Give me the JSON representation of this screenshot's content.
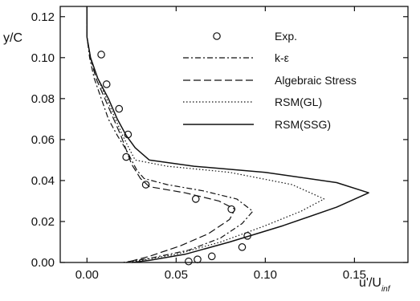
{
  "chart_data": {
    "type": "line",
    "xlabel": "u'/U",
    "xlabel_sub": "inf",
    "ylabel": "y/C",
    "xlim": [
      -0.015,
      0.18
    ],
    "ylim": [
      0.0,
      0.125
    ],
    "x_ticks": [
      0.0,
      0.05,
      0.1,
      0.15
    ],
    "x_tick_labels": [
      "0.00",
      "0.05",
      "0.10",
      "0.15"
    ],
    "y_ticks": [
      0.0,
      0.02,
      0.04,
      0.06,
      0.08,
      0.1,
      0.12
    ],
    "y_tick_labels": [
      "0.00",
      "0.02",
      "0.04",
      "0.06",
      "0.08",
      "0.10",
      "0.12"
    ],
    "grid": false,
    "legend_position": "top-right",
    "series": [
      {
        "name": "Exp.",
        "marker": "circle",
        "style": "markers",
        "points": [
          [
            0.008,
            0.1015
          ],
          [
            0.011,
            0.087
          ],
          [
            0.018,
            0.075
          ],
          [
            0.023,
            0.0625
          ],
          [
            0.022,
            0.0515
          ],
          [
            0.033,
            0.038
          ],
          [
            0.061,
            0.031
          ],
          [
            0.081,
            0.026
          ],
          [
            0.09,
            0.013
          ],
          [
            0.087,
            0.0075
          ],
          [
            0.07,
            0.003
          ],
          [
            0.062,
            0.0015
          ],
          [
            0.057,
            0.0005
          ]
        ]
      },
      {
        "name": "k-ε",
        "style": "dash-dot",
        "points": [
          [
            0.0,
            0.125
          ],
          [
            0.0,
            0.11
          ],
          [
            0.0015,
            0.1
          ],
          [
            0.004,
            0.09
          ],
          [
            0.008,
            0.08
          ],
          [
            0.012,
            0.07
          ],
          [
            0.017,
            0.062
          ],
          [
            0.022,
            0.055
          ],
          [
            0.025,
            0.05
          ],
          [
            0.028,
            0.045
          ],
          [
            0.032,
            0.041
          ],
          [
            0.045,
            0.038
          ],
          [
            0.065,
            0.035
          ],
          [
            0.084,
            0.031
          ],
          [
            0.093,
            0.025
          ],
          [
            0.087,
            0.019
          ],
          [
            0.075,
            0.012
          ],
          [
            0.057,
            0.006
          ],
          [
            0.035,
            0.002
          ],
          [
            0.02,
            0.0
          ]
        ]
      },
      {
        "name": "Algebraic Stress",
        "style": "dashed",
        "points": [
          [
            0.0,
            0.125
          ],
          [
            0.0,
            0.11
          ],
          [
            0.002,
            0.1
          ],
          [
            0.005,
            0.09
          ],
          [
            0.01,
            0.08
          ],
          [
            0.015,
            0.07
          ],
          [
            0.019,
            0.062
          ],
          [
            0.022,
            0.055
          ],
          [
            0.025,
            0.048
          ],
          [
            0.03,
            0.041
          ],
          [
            0.035,
            0.037
          ],
          [
            0.055,
            0.034
          ],
          [
            0.074,
            0.03
          ],
          [
            0.083,
            0.026
          ],
          [
            0.08,
            0.021
          ],
          [
            0.068,
            0.014
          ],
          [
            0.052,
            0.008
          ],
          [
            0.035,
            0.003
          ],
          [
            0.022,
            0.0
          ]
        ]
      },
      {
        "name": "RSM(GL)",
        "style": "dotted",
        "points": [
          [
            0.0,
            0.125
          ],
          [
            0.0,
            0.11
          ],
          [
            0.002,
            0.1
          ],
          [
            0.006,
            0.09
          ],
          [
            0.011,
            0.08
          ],
          [
            0.016,
            0.07
          ],
          [
            0.02,
            0.062
          ],
          [
            0.024,
            0.055
          ],
          [
            0.027,
            0.05
          ],
          [
            0.045,
            0.047
          ],
          [
            0.08,
            0.044
          ],
          [
            0.115,
            0.038
          ],
          [
            0.133,
            0.031
          ],
          [
            0.12,
            0.025
          ],
          [
            0.1,
            0.018
          ],
          [
            0.075,
            0.01
          ],
          [
            0.05,
            0.004
          ],
          [
            0.03,
            0.001
          ],
          [
            0.022,
            0.0
          ]
        ]
      },
      {
        "name": "RSM(SSG)",
        "style": "solid",
        "points": [
          [
            0.0,
            0.125
          ],
          [
            0.0,
            0.11
          ],
          [
            0.002,
            0.1
          ],
          [
            0.006,
            0.09
          ],
          [
            0.012,
            0.08
          ],
          [
            0.017,
            0.07
          ],
          [
            0.022,
            0.062
          ],
          [
            0.027,
            0.056
          ],
          [
            0.035,
            0.05
          ],
          [
            0.06,
            0.047
          ],
          [
            0.1,
            0.044
          ],
          [
            0.14,
            0.039
          ],
          [
            0.158,
            0.034
          ],
          [
            0.14,
            0.027
          ],
          [
            0.11,
            0.018
          ],
          [
            0.08,
            0.01
          ],
          [
            0.055,
            0.004
          ],
          [
            0.035,
            0.001
          ],
          [
            0.025,
            0.0
          ]
        ]
      }
    ]
  }
}
